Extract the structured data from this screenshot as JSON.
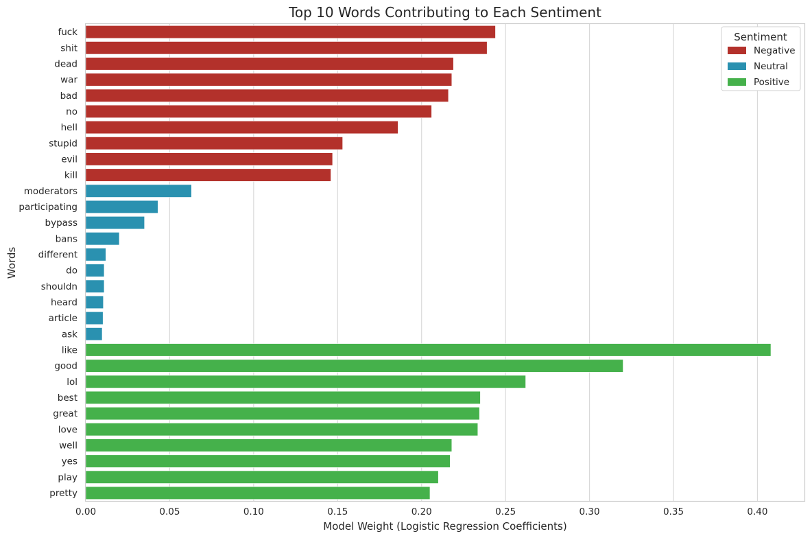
{
  "chart_data": {
    "type": "bar",
    "orientation": "horizontal",
    "title": "Top 10 Words Contributing to Each Sentiment",
    "xlabel": "Model Weight (Logistic Regression Coefficients)",
    "ylabel": "Words",
    "xlim": [
      0,
      0.428
    ],
    "xticks": [
      "0.00",
      "0.05",
      "0.10",
      "0.15",
      "0.20",
      "0.25",
      "0.30",
      "0.35",
      "0.40"
    ],
    "xtick_values": [
      0,
      0.05,
      0.1,
      0.15,
      0.2,
      0.25,
      0.3,
      0.35,
      0.4
    ],
    "grid": "vertical",
    "legend": {
      "title": "Sentiment",
      "placement": "top-right",
      "entries": [
        {
          "name": "Negative",
          "color": "#b3312b"
        },
        {
          "name": "Neutral",
          "color": "#2a91b0"
        },
        {
          "name": "Positive",
          "color": "#45b14b"
        }
      ]
    },
    "bars": [
      {
        "word": "fuck",
        "value": 0.244,
        "sentiment": "Negative"
      },
      {
        "word": "shit",
        "value": 0.239,
        "sentiment": "Negative"
      },
      {
        "word": "dead",
        "value": 0.219,
        "sentiment": "Negative"
      },
      {
        "word": "war",
        "value": 0.218,
        "sentiment": "Negative"
      },
      {
        "word": "bad",
        "value": 0.216,
        "sentiment": "Negative"
      },
      {
        "word": "no",
        "value": 0.206,
        "sentiment": "Negative"
      },
      {
        "word": "hell",
        "value": 0.186,
        "sentiment": "Negative"
      },
      {
        "word": "stupid",
        "value": 0.153,
        "sentiment": "Negative"
      },
      {
        "word": "evil",
        "value": 0.147,
        "sentiment": "Negative"
      },
      {
        "word": "kill",
        "value": 0.146,
        "sentiment": "Negative"
      },
      {
        "word": "moderators",
        "value": 0.063,
        "sentiment": "Neutral"
      },
      {
        "word": "participating",
        "value": 0.043,
        "sentiment": "Neutral"
      },
      {
        "word": "bypass",
        "value": 0.035,
        "sentiment": "Neutral"
      },
      {
        "word": "bans",
        "value": 0.02,
        "sentiment": "Neutral"
      },
      {
        "word": "different",
        "value": 0.012,
        "sentiment": "Neutral"
      },
      {
        "word": "do",
        "value": 0.011,
        "sentiment": "Neutral"
      },
      {
        "word": "shouldn",
        "value": 0.011,
        "sentiment": "Neutral"
      },
      {
        "word": "heard",
        "value": 0.0105,
        "sentiment": "Neutral"
      },
      {
        "word": "article",
        "value": 0.0103,
        "sentiment": "Neutral"
      },
      {
        "word": "ask",
        "value": 0.0098,
        "sentiment": "Neutral"
      },
      {
        "word": "like",
        "value": 0.408,
        "sentiment": "Positive"
      },
      {
        "word": "good",
        "value": 0.32,
        "sentiment": "Positive"
      },
      {
        "word": "lol",
        "value": 0.262,
        "sentiment": "Positive"
      },
      {
        "word": "best",
        "value": 0.235,
        "sentiment": "Positive"
      },
      {
        "word": "great",
        "value": 0.2345,
        "sentiment": "Positive"
      },
      {
        "word": "love",
        "value": 0.2335,
        "sentiment": "Positive"
      },
      {
        "word": "well",
        "value": 0.218,
        "sentiment": "Positive"
      },
      {
        "word": "yes",
        "value": 0.217,
        "sentiment": "Positive"
      },
      {
        "word": "play",
        "value": 0.21,
        "sentiment": "Positive"
      },
      {
        "word": "pretty",
        "value": 0.205,
        "sentiment": "Positive"
      }
    ]
  }
}
